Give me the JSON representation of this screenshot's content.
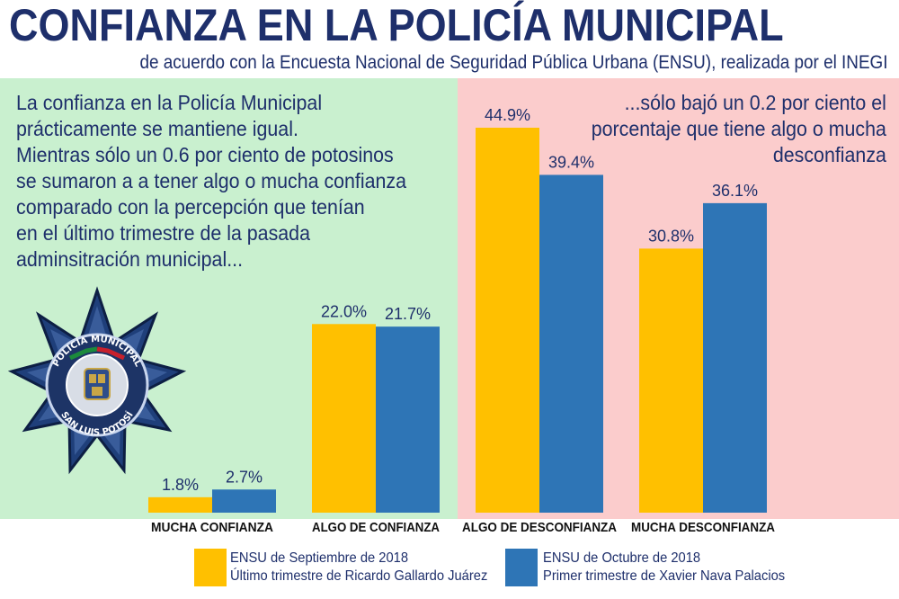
{
  "title": "CONFIANZA EN LA POLICÍA MUNICIPAL",
  "subtitle": "de acuerdo con la Encuesta Nacional de Seguridad Pública Urbana (ENSU), realizada por el INEGI",
  "note_left": "La confianza en la Policía Municipal\nprácticamente se mantiene igual.\nMientras sólo un 0.6 por ciento de potosinos\nse sumaron a a tener algo o mucha confianza\ncomparado con la percepción que tenían\nen el último trimestre de la pasada\nadminsitración municipal...",
  "note_right": "...sólo bajó un 0.2 por ciento el\nporcentaje que tiene algo o mucha\ndesconfianza",
  "badge": {
    "top_text": "POLICÍA MUNICIPAL",
    "bottom_text": "SAN LUIS POTOSÍ"
  },
  "colors": {
    "series_1": "#ffc000",
    "series_2": "#2e75b6",
    "panel_green": "#c9f0cf",
    "panel_pink": "#fbcccc",
    "title": "#1e2f6b"
  },
  "chart_data": {
    "type": "bar",
    "categories": [
      "MUCHA CONFIANZA",
      "ALGO DE CONFIANZA",
      "ALGO DE DESCONFIANZA",
      "MUCHA DESCONFIANZA"
    ],
    "series": [
      {
        "name": "ENSU de Septiembre de 2018",
        "subname": "Último trimestre de Ricardo Gallardo Juárez",
        "values": [
          1.8,
          22.0,
          44.9,
          30.8
        ],
        "labels": [
          "1.8%",
          "22.0%",
          "44.9%",
          "30.8%"
        ]
      },
      {
        "name": "ENSU de Octubre de 2018",
        "subname": "Primer trimestre de Xavier Nava Palacios",
        "values": [
          2.7,
          21.7,
          39.4,
          36.1
        ],
        "labels": [
          "2.7%",
          "21.7%",
          "39.4%",
          "36.1%"
        ]
      }
    ],
    "ylim": [
      0,
      50
    ],
    "grid": false,
    "legend_position": "bottom"
  }
}
